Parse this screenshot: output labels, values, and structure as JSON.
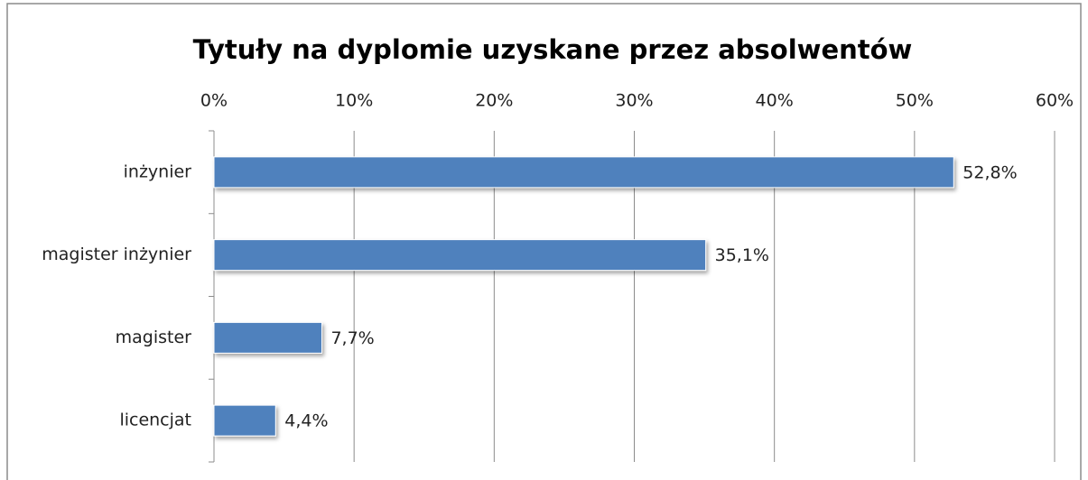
{
  "chart_data": {
    "type": "bar",
    "orientation": "horizontal",
    "title": "Tytuły na dyplomie uzyskane przez absolwentów",
    "categories": [
      "inżynier",
      "magister inżynier",
      "magister",
      "licencjat"
    ],
    "values": [
      52.8,
      35.1,
      7.7,
      4.4
    ],
    "value_labels": [
      "52,8%",
      "35,1%",
      "7,7%",
      "4,4%"
    ],
    "color": "#4f81bd",
    "xlim": [
      0,
      60
    ],
    "xticks": [
      {
        "value": 0,
        "label": "0%"
      },
      {
        "value": 10,
        "label": "10%"
      },
      {
        "value": 20,
        "label": "20%"
      },
      {
        "value": 30,
        "label": "30%"
      },
      {
        "value": 40,
        "label": "40%"
      },
      {
        "value": 50,
        "label": "50%"
      },
      {
        "value": 60,
        "label": "60%"
      }
    ],
    "grid": true
  }
}
